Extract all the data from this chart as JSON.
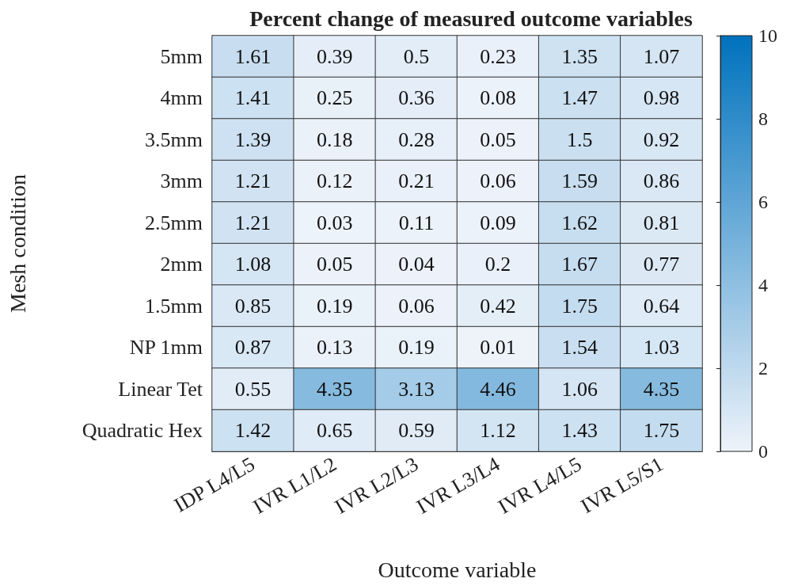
{
  "chart_data": {
    "type": "heatmap",
    "title": "Percent change of measured outcome variables",
    "xlabel": "Outcome variable",
    "ylabel": "Mesh condition",
    "categories": [
      "IDP L4/L5",
      "IVR L1/L2",
      "IVR L2/L3",
      "IVR L3/L4",
      "IVR L4/L5",
      "IVR L5/S1"
    ],
    "y_categories": [
      "5mm",
      "4mm",
      "3.5mm",
      "3mm",
      "2.5mm",
      "2mm",
      "1.5mm",
      "NP 1mm",
      "Linear Tet",
      "Quadratic Hex"
    ],
    "cells": [
      [
        1.61,
        0.39,
        0.5,
        0.23,
        1.35,
        1.07
      ],
      [
        1.41,
        0.25,
        0.36,
        0.08,
        1.47,
        0.98
      ],
      [
        1.39,
        0.18,
        0.28,
        0.05,
        1.5,
        0.92
      ],
      [
        1.21,
        0.12,
        0.21,
        0.06,
        1.59,
        0.86
      ],
      [
        1.21,
        0.03,
        0.11,
        0.09,
        1.62,
        0.81
      ],
      [
        1.08,
        0.05,
        0.04,
        0.2,
        1.67,
        0.77
      ],
      [
        0.85,
        0.19,
        0.06,
        0.42,
        1.75,
        0.64
      ],
      [
        0.87,
        0.13,
        0.19,
        0.01,
        1.54,
        1.03
      ],
      [
        0.55,
        4.35,
        3.13,
        4.46,
        1.06,
        4.35
      ],
      [
        1.42,
        0.65,
        0.59,
        1.12,
        1.43,
        1.75
      ]
    ],
    "data_labels": true,
    "clim": [
      0,
      10
    ],
    "cticks": [
      0,
      2,
      4,
      6,
      8,
      10
    ]
  }
}
